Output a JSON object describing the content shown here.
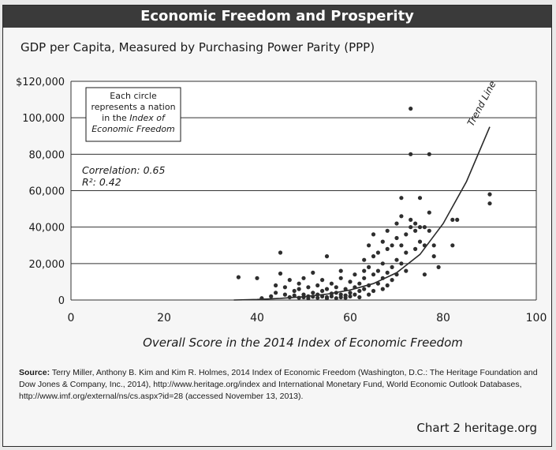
{
  "title": "Economic Freedom and Prosperity",
  "subtitle": "GDP per Capita, Measured by Purchasing Power Parity (PPP)",
  "source_label": "Source:",
  "source_text": "Terry Miller, Anthony B. Kim and Kim R. Holmes, 2014 Index of Economic Freedom (Washington, D.C.: The Heritage Foundation and Dow Jones & Company, Inc., 2014), http://www.heritage.org/index and International Monetary Fund, World Economic Outlook Databases, http://www.imf.org/external/ns/cs.aspx?id=28 (accessed November 13, 2013).",
  "credit": "Chart 2 heritage.org",
  "chart_data": {
    "type": "scatter",
    "title": "Economic Freedom and Prosperity",
    "subtitle": "GDP per Capita, Measured by Purchasing Power Parity (PPP)",
    "xlabel": "Overall Score in the 2014 Index of Economic Freedom",
    "ylabel": "",
    "xlim": [
      0,
      100
    ],
    "ylim": [
      0,
      120000
    ],
    "x_ticks": [
      "0",
      "20",
      "40",
      "60",
      "80",
      "100"
    ],
    "x_tick_values": [
      0,
      20,
      40,
      60,
      80,
      100
    ],
    "y_ticks": [
      "0",
      "20,000",
      "40,000",
      "60,000",
      "80,000",
      "100,000",
      "$120,000"
    ],
    "y_tick_values": [
      0,
      20000,
      40000,
      60000,
      80000,
      100000,
      120000
    ],
    "grid": "horizontal",
    "note_lines": [
      "Each circle",
      "represents a nation",
      "in the"
    ],
    "note_italic_1": "Index of",
    "note_italic_2": "Economic Freedom",
    "stats_correlation": "Correlation: 0.65",
    "stats_r2": "R²: 0.42",
    "trend_label": "Trend Line",
    "trend": [
      [
        35,
        0
      ],
      [
        40,
        300
      ],
      [
        45,
        900
      ],
      [
        50,
        1800
      ],
      [
        55,
        3200
      ],
      [
        60,
        5500
      ],
      [
        65,
        9000
      ],
      [
        70,
        15000
      ],
      [
        75,
        25000
      ],
      [
        80,
        42000
      ],
      [
        85,
        65000
      ],
      [
        90,
        95000
      ]
    ],
    "points": [
      [
        36,
        12500
      ],
      [
        40,
        12000
      ],
      [
        41,
        1000
      ],
      [
        43,
        2000
      ],
      [
        44,
        8000
      ],
      [
        44,
        4000
      ],
      [
        45,
        26000
      ],
      [
        45,
        14500
      ],
      [
        46,
        7000
      ],
      [
        46,
        3000
      ],
      [
        47,
        1500
      ],
      [
        47,
        11000
      ],
      [
        48,
        5000
      ],
      [
        48,
        2500
      ],
      [
        49,
        9000
      ],
      [
        49,
        6000
      ],
      [
        49,
        1200
      ],
      [
        50,
        3000
      ],
      [
        50,
        1500
      ],
      [
        50,
        12000
      ],
      [
        51,
        7000
      ],
      [
        51,
        2000
      ],
      [
        51,
        900
      ],
      [
        52,
        15000
      ],
      [
        52,
        4000
      ],
      [
        52,
        1800
      ],
      [
        53,
        8000
      ],
      [
        53,
        3000
      ],
      [
        53,
        1200
      ],
      [
        54,
        11000
      ],
      [
        54,
        5000
      ],
      [
        54,
        2000
      ],
      [
        55,
        24000
      ],
      [
        55,
        6000
      ],
      [
        55,
        1500
      ],
      [
        55,
        900
      ],
      [
        56,
        9000
      ],
      [
        56,
        3500
      ],
      [
        56,
        2000
      ],
      [
        57,
        7000
      ],
      [
        57,
        4000
      ],
      [
        57,
        1000
      ],
      [
        58,
        16000
      ],
      [
        58,
        12000
      ],
      [
        58,
        3000
      ],
      [
        58,
        1500
      ],
      [
        59,
        6000
      ],
      [
        59,
        2500
      ],
      [
        59,
        1200
      ],
      [
        60,
        10000
      ],
      [
        60,
        4000
      ],
      [
        60,
        2000
      ],
      [
        61,
        14000
      ],
      [
        61,
        7000
      ],
      [
        61,
        3000
      ],
      [
        62,
        9000
      ],
      [
        62,
        5000
      ],
      [
        62,
        1500
      ],
      [
        63,
        22000
      ],
      [
        63,
        16000
      ],
      [
        63,
        12000
      ],
      [
        63,
        6000
      ],
      [
        64,
        30000
      ],
      [
        64,
        18000
      ],
      [
        64,
        8000
      ],
      [
        64,
        3000
      ],
      [
        65,
        36000
      ],
      [
        65,
        24000
      ],
      [
        65,
        14000
      ],
      [
        65,
        5000
      ],
      [
        66,
        26000
      ],
      [
        66,
        16000
      ],
      [
        66,
        9000
      ],
      [
        67,
        32000
      ],
      [
        67,
        20000
      ],
      [
        67,
        12000
      ],
      [
        67,
        6000
      ],
      [
        68,
        38000
      ],
      [
        68,
        28000
      ],
      [
        68,
        15000
      ],
      [
        68,
        8000
      ],
      [
        69,
        30000
      ],
      [
        69,
        18000
      ],
      [
        69,
        11000
      ],
      [
        70,
        42000
      ],
      [
        70,
        34000
      ],
      [
        70,
        22000
      ],
      [
        70,
        14000
      ],
      [
        71,
        56000
      ],
      [
        71,
        46000
      ],
      [
        71,
        30000
      ],
      [
        71,
        20000
      ],
      [
        72,
        36000
      ],
      [
        72,
        26000
      ],
      [
        72,
        16000
      ],
      [
        73,
        105000
      ],
      [
        73,
        80000
      ],
      [
        73,
        44000
      ],
      [
        73,
        40000
      ],
      [
        74,
        42000
      ],
      [
        74,
        38000
      ],
      [
        74,
        28000
      ],
      [
        75,
        56000
      ],
      [
        75,
        40000
      ],
      [
        75,
        32000
      ],
      [
        76,
        40000
      ],
      [
        76,
        30000
      ],
      [
        76,
        14000
      ],
      [
        77,
        80000
      ],
      [
        77,
        48000
      ],
      [
        77,
        38000
      ],
      [
        78,
        30000
      ],
      [
        78,
        24000
      ],
      [
        79,
        18000
      ],
      [
        82,
        44000
      ],
      [
        82,
        30000
      ],
      [
        83,
        44000
      ],
      [
        90,
        58000
      ],
      [
        90,
        53000
      ]
    ]
  }
}
